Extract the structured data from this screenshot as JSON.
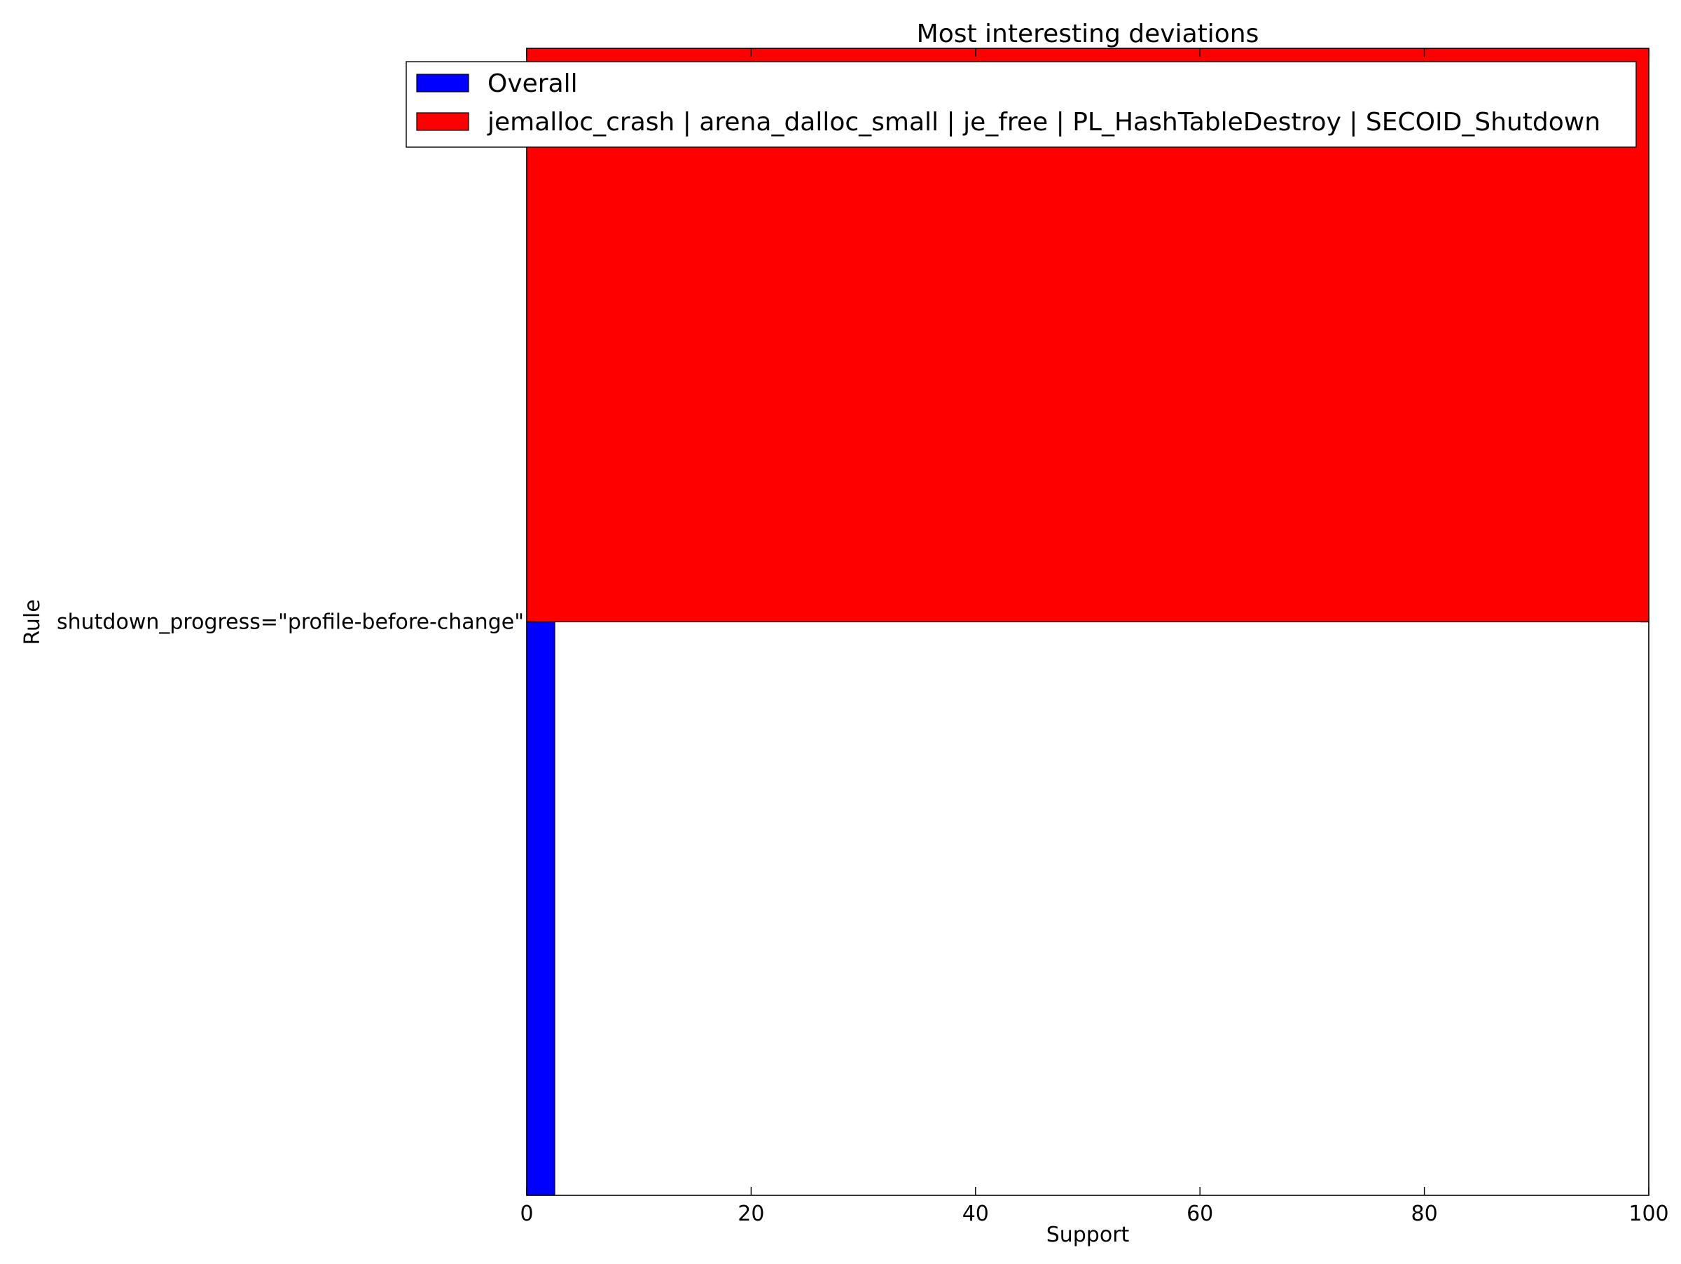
{
  "chart_data": {
    "type": "bar",
    "orientation": "horizontal",
    "title": "Most interesting deviations",
    "xlabel": "Support",
    "ylabel": "Rule",
    "xlim": [
      0,
      100
    ],
    "xticks": [
      0,
      20,
      40,
      60,
      80,
      100
    ],
    "categories": [
      "shutdown_progress=\"profile-before-change\""
    ],
    "series": [
      {
        "name": "Overall",
        "color": "#0000ff",
        "values": [
          2.5
        ]
      },
      {
        "name": "jemalloc_crash | arena_dalloc_small | je_free | PL_HashTableDestroy | SECOID_Shutdown",
        "color": "#ff0000",
        "values": [
          100
        ]
      }
    ],
    "legend": "top-right",
    "grid": false
  }
}
